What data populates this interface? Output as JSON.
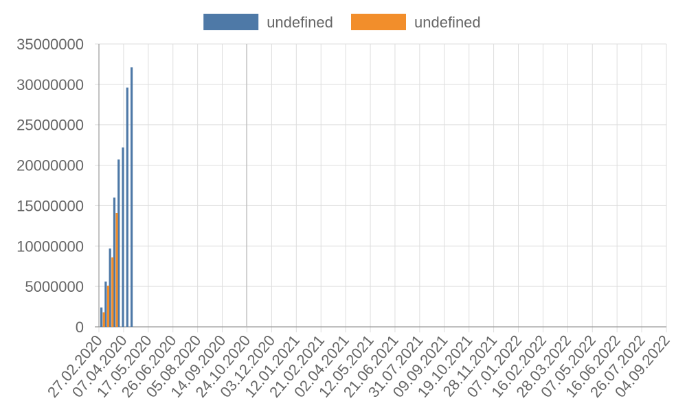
{
  "chart_data": {
    "type": "bar",
    "legend_position": "top",
    "grid": true,
    "ylim": [
      0,
      35000000
    ],
    "y_ticks": [
      "35000000",
      "30000000",
      "25000000",
      "20000000",
      "15000000",
      "10000000",
      "5000000",
      "0"
    ],
    "x_ticks": [
      "27.02.2020",
      "07.04.2020",
      "17.05.2020",
      "26.06.2020",
      "05.08.2020",
      "14.09.2020",
      "24.10.2020",
      "03.12.2020",
      "12.01.2021",
      "21.02.2021",
      "02.04.2021",
      "12.05.2021",
      "21.06.2021",
      "31.07.2021",
      "09.09.2021",
      "19.10.2021",
      "28.11.2021",
      "07.01.2022",
      "16.02.2022",
      "28.03.2022",
      "07.05.2022",
      "16.06.2022",
      "26.07.2022",
      "04.09.2022"
    ],
    "series": [
      {
        "name": "undefined",
        "color": "#4e79a7",
        "points": [
          {
            "x": "2020-03-04",
            "y": 2400000
          },
          {
            "x": "2020-03-11",
            "y": 5600000
          },
          {
            "x": "2020-03-18",
            "y": 9700000
          },
          {
            "x": "2020-03-25",
            "y": 16000000
          },
          {
            "x": "2020-04-01",
            "y": 20700000
          },
          {
            "x": "2020-04-08",
            "y": 22200000
          },
          {
            "x": "2020-04-15",
            "y": 29600000
          },
          {
            "x": "2020-04-22",
            "y": 32100000
          }
        ]
      },
      {
        "name": "undefined",
        "color": "#f28e2b",
        "points": [
          {
            "x": "2020-03-04",
            "y": 1800000
          },
          {
            "x": "2020-03-11",
            "y": 5100000
          },
          {
            "x": "2020-03-18",
            "y": 8600000
          },
          {
            "x": "2020-03-25",
            "y": 14100000
          }
        ]
      }
    ]
  }
}
